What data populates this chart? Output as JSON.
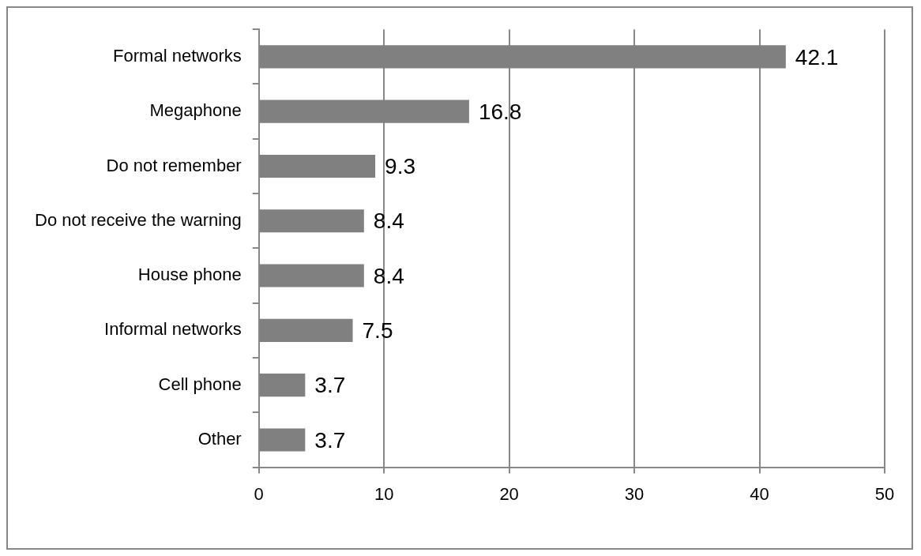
{
  "chart_data": {
    "type": "bar",
    "orientation": "horizontal",
    "categories": [
      "Formal networks",
      "Megaphone",
      "Do not remember",
      "Do not receive the warning",
      "House phone",
      "Informal networks",
      "Cell phone",
      "Other"
    ],
    "values": [
      42.1,
      16.8,
      9.3,
      8.4,
      8.4,
      7.5,
      3.7,
      3.7
    ],
    "color": "#808080",
    "xlim": [
      0,
      50
    ],
    "xticks": [
      0,
      10,
      20,
      30,
      40,
      50
    ],
    "grid": "x",
    "data_labels": true
  }
}
